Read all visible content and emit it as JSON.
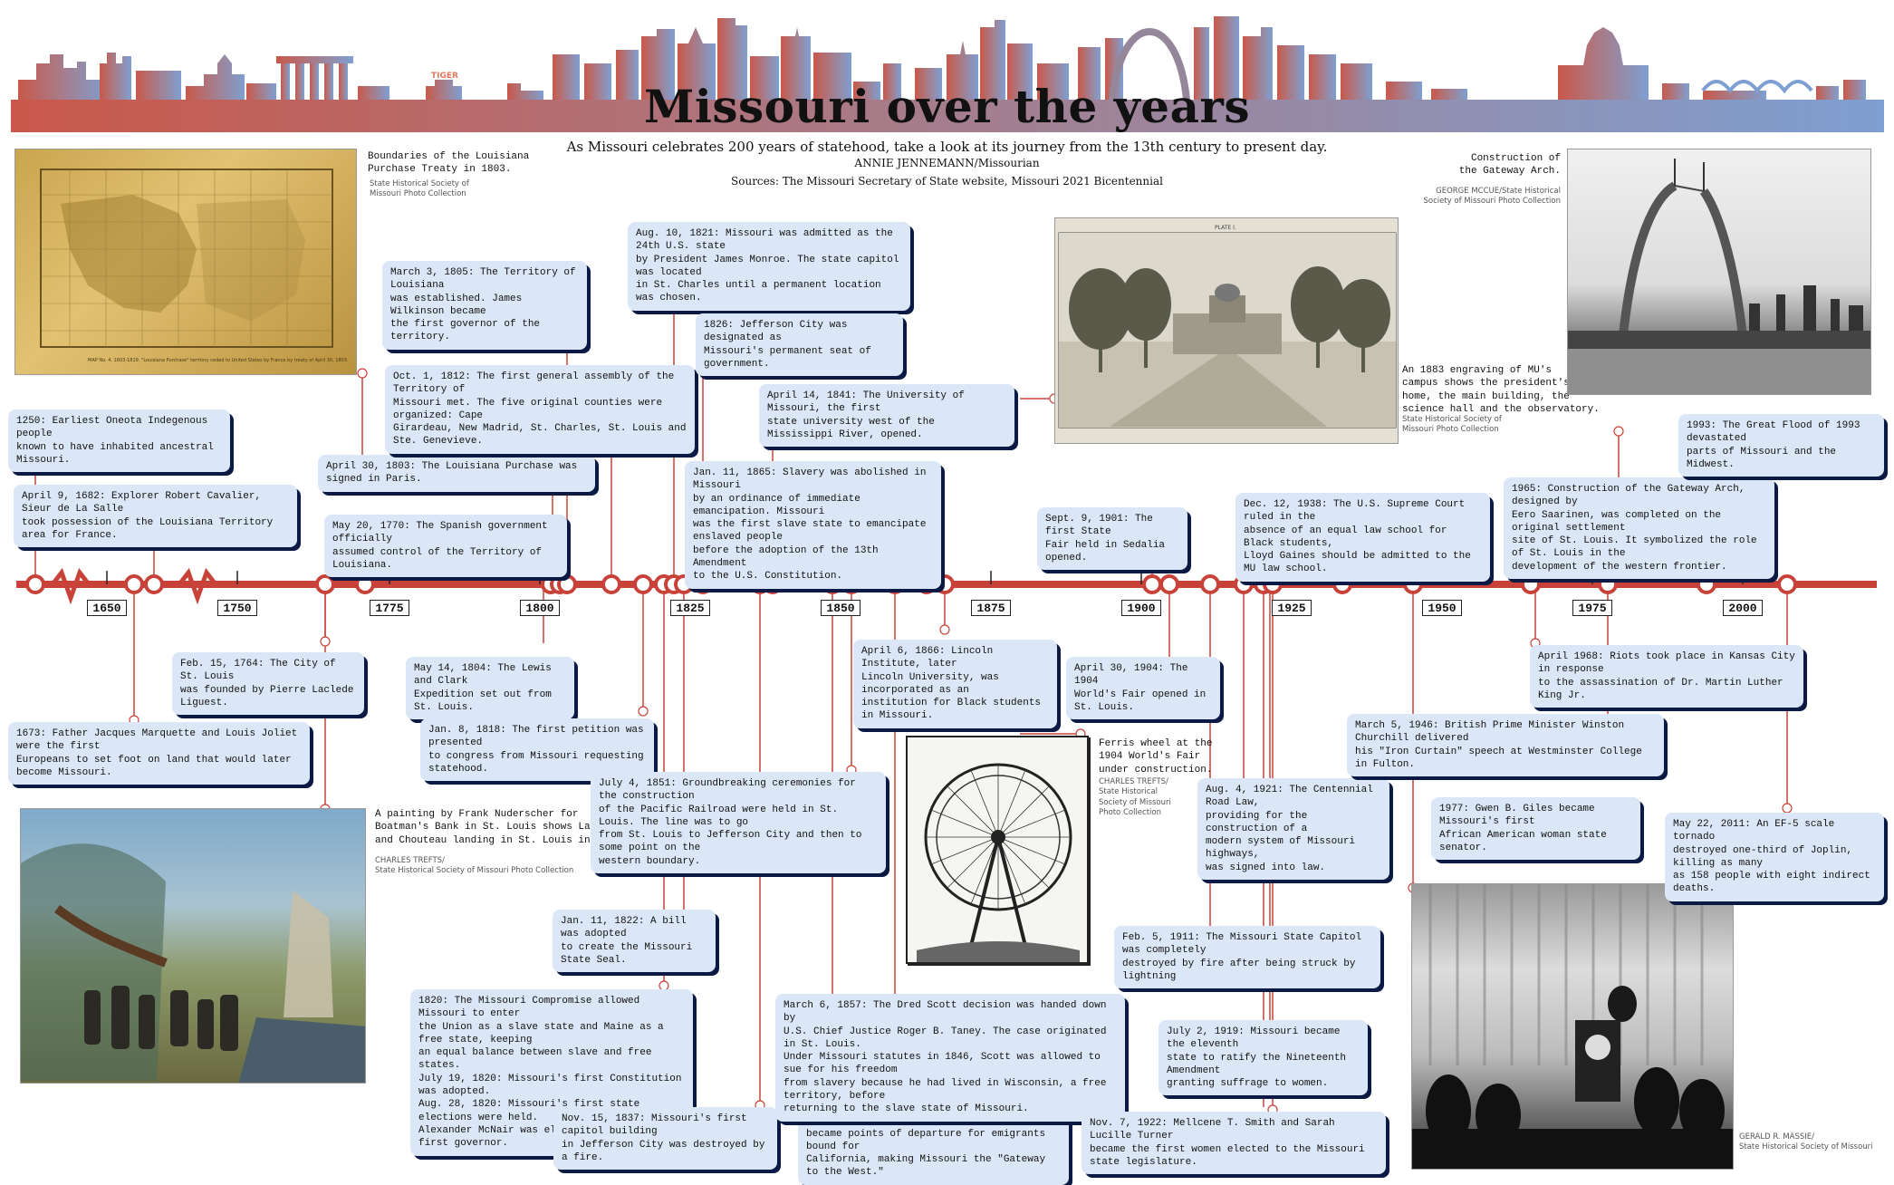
{
  "header": {
    "title": "Missouri over the years",
    "subtitle": "As Missouri celebrates 200 years of statehood, take a look at its journey from the 13th century to present day.",
    "byline": "ANNIE JENNEMANN/Missourian",
    "sources": "Sources: The Missouri Secretary of State website, Missouri 2021 Bicentennial",
    "skyline_sign": "TIGER"
  },
  "colors": {
    "timeline_red": "#c9423a",
    "skyline_left": "#c9584a",
    "skyline_right": "#7e9fd1",
    "box_fill": "#dbe7f6",
    "box_shadow": "#0a1a44"
  },
  "timeline": {
    "year_labels": [
      "1650",
      "1750",
      "1775",
      "1800",
      "1825",
      "1850",
      "1875",
      "1900",
      "1925",
      "1950",
      "1975",
      "2000"
    ]
  },
  "events": [
    {
      "id": "e1250",
      "text": "1250: Earliest Oneota Indegenous people\nknown to have inhabited ancestral Missouri."
    },
    {
      "id": "e1673",
      "text": "1673: Father Jacques Marquette and Louis Joliet were the first\nEuropeans to set foot on land that would later become Missouri."
    },
    {
      "id": "e1682",
      "text": "April 9, 1682: Explorer Robert Cavalier, Sieur de La Salle\ntook possession of the Louisiana Territory area for France."
    },
    {
      "id": "e1764",
      "text": "Feb. 15, 1764: The City of St. Louis\nwas founded by Pierre Laclede Liguest."
    },
    {
      "id": "e1770",
      "text": "May 20, 1770: The Spanish government officially\nassumed control of the Territory of Louisiana."
    },
    {
      "id": "e1803",
      "text": "April 30, 1803: The Louisiana Purchase was signed in Paris."
    },
    {
      "id": "e1804",
      "text": "May 14, 1804: The Lewis and Clark\nExpedition set out from St. Louis."
    },
    {
      "id": "e1805",
      "text": "March 3, 1805: The Territory of Louisiana\nwas established. James Wilkinson became\nthe first governor of the territory."
    },
    {
      "id": "e1812",
      "text": "Oct. 1, 1812: The first general assembly of the Territory of\nMissouri met. The five original counties were organized: Cape\nGirardeau, New Madrid, St. Charles, St. Louis and Ste. Genevieve."
    },
    {
      "id": "e1818",
      "text": "Jan. 8, 1818: The first petition was presented\nto congress from Missouri requesting statehood."
    },
    {
      "id": "e1820",
      "text": "1820: The Missouri Compromise allowed Missouri to enter\nthe Union as a slave state and Maine as a free state, keeping\nan equal balance between slave and free states.\nJuly 19, 1820: Missouri's first Constitution was adopted.\nAug. 28, 1820: Missouri's first state elections were held.\nAlexander McNair was elected Missouri's first governor."
    },
    {
      "id": "e1821",
      "text": "Aug. 10, 1821: Missouri was admitted as the 24th U.S. state\nby President James Monroe. The state capitol was located\nin St. Charles until a permanent location was chosen."
    },
    {
      "id": "e1822",
      "text": "Jan. 11, 1822: A bill was adopted\nto create the Missouri State Seal."
    },
    {
      "id": "e1826",
      "text": "1826: Jefferson City was designated as\nMissouri's permanent seat of government."
    },
    {
      "id": "e1837",
      "text": "Nov. 15, 1837: Missouri's first capitol building\nin Jefferson City was destroyed by a fire."
    },
    {
      "id": "e1841",
      "text": "April 14, 1841: The University of Missouri, the first\nstate university west of the Mississippi River, opened."
    },
    {
      "id": "e1849",
      "text": "1849: St. Louis, Independence, Westport and St. Joseph\nbecame points of departure for emigrants bound for\nCalifornia, making Missouri the \"Gateway to the West.\""
    },
    {
      "id": "e1851",
      "text": "July 4, 1851: Groundbreaking ceremonies for the construction\nof the Pacific Railroad were held in St. Louis. The line was to go\nfrom St. Louis to Jefferson City and then to some point on the\nwestern boundary."
    },
    {
      "id": "e1857",
      "text": "March 6, 1857: The Dred Scott decision was handed down by\nU.S. Chief Justice Roger B. Taney. The case originated in St. Louis.\nUnder Missouri statutes in 1846, Scott was allowed to sue for his freedom\nfrom slavery because he had lived in Wisconsin, a free territory, before\nreturning to the slave state of Missouri."
    },
    {
      "id": "e1865",
      "text": "Jan. 11, 1865: Slavery was abolished in Missouri\nby an ordinance of immediate emancipation. Missouri\nwas the first slave state to emancipate enslaved people\nbefore the adoption of the 13th Amendment\nto the U.S. Constitution."
    },
    {
      "id": "e1866",
      "text": "April 6, 1866: Lincoln Institute, later\nLincoln University, was incorporated as an\ninstitution for Black students in Missouri."
    },
    {
      "id": "e1901",
      "text": "Sept. 9, 1901: The first State\nFair held in Sedalia opened."
    },
    {
      "id": "e1904",
      "text": "April 30, 1904: The 1904\nWorld's Fair opened in St. Louis."
    },
    {
      "id": "e1911",
      "text": "Feb. 5, 1911: The Missouri State Capitol was completely\ndestroyed by fire after being struck by lightning"
    },
    {
      "id": "e1919",
      "text": "July 2, 1919: Missouri became the eleventh\nstate to ratify the Nineteenth Amendment\ngranting suffrage to women."
    },
    {
      "id": "e1921",
      "text": "Aug. 4, 1921: The Centennial Road Law,\nproviding for the construction of a\nmodern system of Missouri highways,\nwas signed into law."
    },
    {
      "id": "e1922",
      "text": "Nov. 7, 1922: Mellcene T. Smith and Sarah Lucille Turner\nbecame the first women elected to the Missouri state legislature."
    },
    {
      "id": "e1938",
      "text": "Dec. 12, 1938: The U.S. Supreme Court ruled in the\nabsence of an equal law school for Black students,\nLloyd Gaines should be admitted to the MU law school."
    },
    {
      "id": "e1946",
      "text": "March 5, 1946: British Prime Minister Winston Churchill delivered\nhis \"Iron Curtain\" speech at Westminster College in Fulton."
    },
    {
      "id": "e1965",
      "text": "1965: Construction of the Gateway Arch, designed by\nEero Saarinen, was completed on the original settlement\nsite of St. Louis. It symbolized the role of St. Louis in the\ndevelopment of the western frontier."
    },
    {
      "id": "e1968",
      "text": "April 1968: Riots took place in Kansas City in response\nto the assassination of Dr. Martin Luther King Jr."
    },
    {
      "id": "e1977",
      "text": "1977: Gwen B. Giles became Missouri's first\nAfrican American woman state senator."
    },
    {
      "id": "e1993",
      "text": "1993: The Great Flood of 1993 devastated\nparts of Missouri and the Midwest."
    },
    {
      "id": "e2011",
      "text": "May 22, 2011: An EF-5 scale tornado\ndestroyed one-third of Joplin, killing as many\nas 158 people with eight indirect deaths."
    }
  ],
  "photos": [
    {
      "id": "map",
      "caption": "Boundaries of the Louisiana\nPurchase Treaty in 1803.",
      "credit": "State Historical Society of\nMissouri Photo Collection",
      "inner_text": "MAP No. 4.   1803-1819.   \"Louisiana Purchase\" territory ceded to United States by France by treaty of April 30, 1803."
    },
    {
      "id": "painting",
      "caption": "A painting by Frank Nuderscher for\nBoatman's Bank in St. Louis shows Laclede\nand Chouteau landing in St. Louis in 1763.",
      "credit": "CHARLES TREFTS/\nState Historical Society of Missouri Photo Collection"
    },
    {
      "id": "mu",
      "caption": "An 1883 engraving of MU's\ncampus shows the president's\nhome, the main building, the\nscience hall and the observatory.",
      "credit": "State Historical Society of\nMissouri Photo Collection",
      "inner_text": "PLATE I."
    },
    {
      "id": "ferris",
      "caption": "Ferris wheel at the\n1904 World's Fair\nunder construction.",
      "credit": "CHARLES TREFTS/\nState Historical\nSociety of Missouri\nPhoto Collection"
    },
    {
      "id": "arch",
      "caption": "Construction of\nthe Gateway Arch.",
      "credit": "GEORGE MCCUE/State Historical\nSociety of Missouri Photo Collection"
    },
    {
      "id": "churchill",
      "caption": "",
      "credit": "GERALD R. MASSIE/\nState Historical Society of Missouri"
    }
  ]
}
